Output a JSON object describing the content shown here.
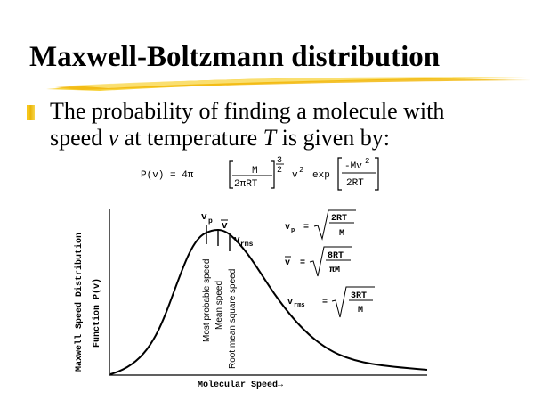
{
  "title": "Maxwell-Boltzmann distribution",
  "bullet": {
    "line1": "The probability of finding a molecule with",
    "line2_prefix": "speed ",
    "var_v": "v",
    "line2_mid": " at temperature ",
    "var_T": "T",
    "line2_suffix": " is given by:"
  },
  "formula": {
    "lhs": "P(v) = 4π",
    "frac_num": "M",
    "frac_den": "2πRT",
    "power_num": "3",
    "power_den": "2",
    "v2": "v",
    "v2_exp": "2",
    "exp": "exp",
    "exp_num": "-Mv",
    "exp_num_sup": "2",
    "exp_den": "2RT"
  },
  "chart_data": {
    "type": "line",
    "xlabel": "Molecular Speed→",
    "ylabel_line1": "Maxwell Speed Distribution",
    "ylabel_line2": "Function  P(v)",
    "markers": {
      "vp": "v",
      "vp_sub": "p",
      "vbar": "v",
      "vrms": "v",
      "vrms_sub": "rms"
    },
    "vertical_labels": [
      "Most probable speed",
      "Mean speed",
      "Root mean square speed"
    ],
    "equations": {
      "vp_lhs": "v",
      "vp_sub": "p",
      "vp_num": "2RT",
      "vp_den": "M",
      "vbar_lhs": "v",
      "vbar_num": "8RT",
      "vbar_den": "πM",
      "vrms_lhs": "v",
      "vrms_sub": "rms",
      "vrms_num": "3RT",
      "vrms_den": "M",
      "equals": "="
    }
  },
  "colors": {
    "accent": "#f5c518",
    "text": "#000000",
    "background": "#ffffff"
  }
}
